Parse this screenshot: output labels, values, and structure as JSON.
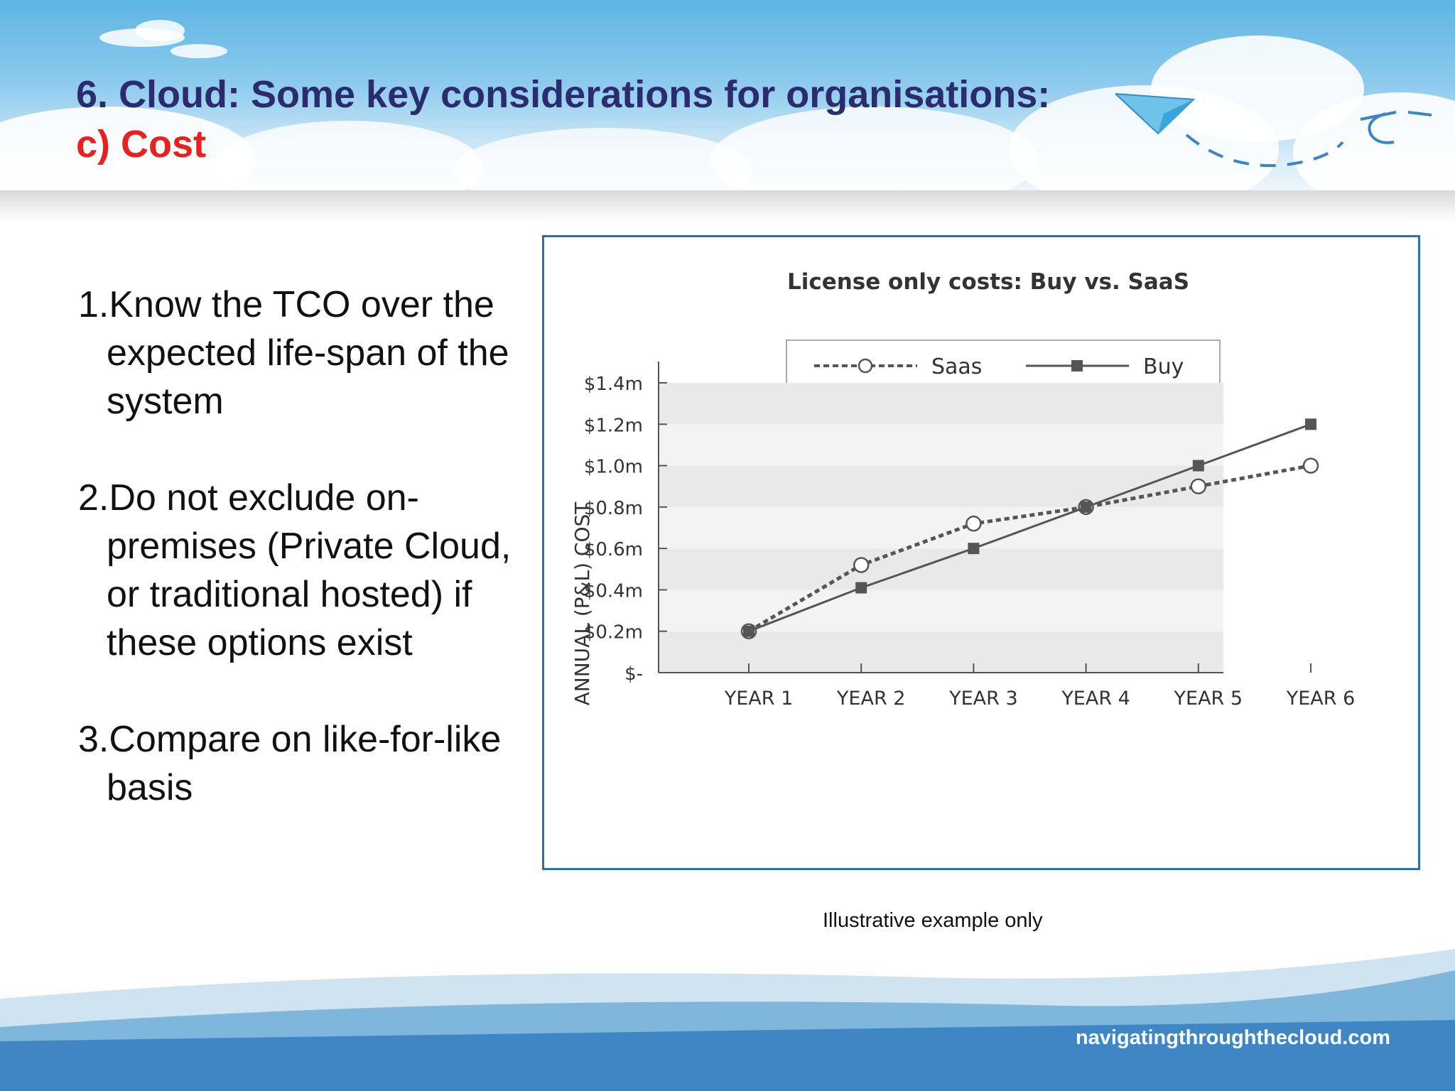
{
  "slide": {
    "title_line1": "6. Cloud: Some key considerations for organisations:",
    "title_line2": "c) Cost",
    "points": [
      "1.Know the TCO over the expected life-span of the system",
      "2.Do not exclude on-premises (Private Cloud, or traditional hosted) if these options exist",
      "3.Compare on like-for-like basis"
    ],
    "caption": "Illustrative example only",
    "footer_url": "navigatingthroughthecloud.com"
  },
  "colors": {
    "title_navy": "#2a2c6e",
    "title_red": "#e8201e",
    "frame_blue": "#2c6db5",
    "series_gray": "#555555"
  },
  "chart_data": {
    "type": "line",
    "title": "License only costs: Buy vs. SaaS",
    "ylabel": "ANNUAL (P&L) COST",
    "xlabel": "",
    "categories": [
      "YEAR 1",
      "YEAR 2",
      "YEAR 3",
      "YEAR 4",
      "YEAR 5",
      "YEAR 6"
    ],
    "ylim": [
      0,
      1.4
    ],
    "yticks": [
      0,
      0.2,
      0.4,
      0.6,
      0.8,
      1.0,
      1.2,
      1.4
    ],
    "ytick_labels": [
      "$-",
      "$0.2m",
      "$0.4m",
      "$0.6m",
      "$0.8m",
      "$1.0m",
      "$1.2m",
      "$1.4m"
    ],
    "grid": "alternating horizontal bands",
    "legend_position": "top-center",
    "series": [
      {
        "name": "Saas",
        "values": [
          0.2,
          0.52,
          0.72,
          0.8,
          0.9,
          1.0
        ],
        "style": "dotted",
        "marker": "open-circle"
      },
      {
        "name": "Buy",
        "values": [
          0.2,
          0.41,
          0.6,
          0.8,
          1.0,
          1.2
        ],
        "style": "solid",
        "marker": "filled-square"
      }
    ]
  }
}
